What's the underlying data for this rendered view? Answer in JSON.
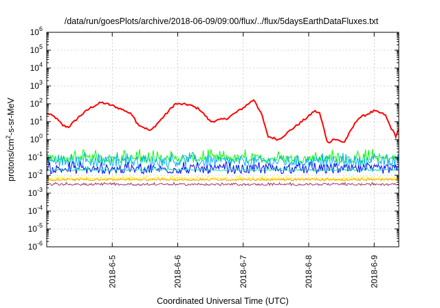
{
  "chart_data": {
    "type": "line",
    "title": "/data/run/goesPlots/archive/2018-06-09/09:00/flux/../flux/5daysEarthDataFluxes.txt",
    "xlabel": "Coordinated Universal Time (UTC)",
    "ylabel": "protons/cm2-s-sr-MeV",
    "ylabel_parts": {
      "base": "protons/cm",
      "sup": "2",
      "rest": "-s-sr-MeV"
    },
    "y_scale": "log",
    "ylim": [
      "1e-6",
      "1e6"
    ],
    "y_ticks": [
      {
        "base": "10",
        "exp": "-6"
      },
      {
        "base": "10",
        "exp": "-5"
      },
      {
        "base": "10",
        "exp": "-4"
      },
      {
        "base": "10",
        "exp": "-3"
      },
      {
        "base": "10",
        "exp": "-2"
      },
      {
        "base": "10",
        "exp": "-1"
      },
      {
        "base": "10",
        "exp": "0"
      },
      {
        "base": "10",
        "exp": "1"
      },
      {
        "base": "10",
        "exp": "2"
      },
      {
        "base": "10",
        "exp": "3"
      },
      {
        "base": "10",
        "exp": "4"
      },
      {
        "base": "10",
        "exp": "5"
      },
      {
        "base": "10",
        "exp": "6"
      }
    ],
    "xlim": [
      "2018-06-04 00:00",
      "2018-06-09 09:00"
    ],
    "x_ticks": [
      "2018-6-5",
      "2018-6-6",
      "2018-6-7",
      "2018-6-8",
      "2018-6-9"
    ],
    "grid": true,
    "series": [
      {
        "color": "#ff0000",
        "style": "smooth",
        "x": [
          "2018-06-04 00:00",
          "2018-06-04 03:00",
          "2018-06-04 06:00",
          "2018-06-04 08:00",
          "2018-06-04 12:00",
          "2018-06-04 16:00",
          "2018-06-04 20:00",
          "2018-06-05 00:00",
          "2018-06-05 05:00",
          "2018-06-05 08:00",
          "2018-06-05 09:00",
          "2018-06-05 14:00",
          "2018-06-05 20:00",
          "2018-06-05 23:00",
          "2018-06-06 04:00",
          "2018-06-06 08:00",
          "2018-06-06 12:00",
          "2018-06-06 18:00",
          "2018-06-07 00:00",
          "2018-06-07 04:00",
          "2018-06-07 07:00",
          "2018-06-07 09:00",
          "2018-06-07 13:00",
          "2018-06-07 18:00",
          "2018-06-08 00:00",
          "2018-06-08 02:00",
          "2018-06-08 04:00",
          "2018-06-08 07:00",
          "2018-06-08 09:00",
          "2018-06-08 13:00",
          "2018-06-08 18:00",
          "2018-06-09 00:00",
          "2018-06-09 04:00",
          "2018-06-09 06:00",
          "2018-06-09 08:00",
          "2018-06-09 09:00"
        ],
        "y": [
          30,
          18,
          6,
          5,
          20,
          60,
          120,
          80,
          40,
          20,
          8,
          3,
          30,
          100,
          90,
          50,
          10,
          15,
          60,
          180,
          20,
          1.5,
          1,
          4,
          20,
          40,
          30,
          0.6,
          1.1,
          0.7,
          15,
          40,
          25,
          5,
          1.5,
          4
        ]
      },
      {
        "color": "#00ff00",
        "style": "noisy",
        "band": [
          "0.05",
          "0.15"
        ],
        "spike_max": "0.3"
      },
      {
        "color": "#00aaff",
        "style": "noisy",
        "band": [
          "0.03",
          "0.12"
        ],
        "spike_max": "0.2"
      },
      {
        "color": "#0000ff",
        "style": "noisy",
        "band": [
          "0.012",
          "0.04"
        ],
        "spike_max": "0.06"
      },
      {
        "color": "#00ddaa",
        "style": "noisy",
        "band": [
          "0.018",
          "0.022"
        ],
        "spike_max": "0.03"
      },
      {
        "color": "#ffff00",
        "style": "noisy",
        "band": [
          "0.005",
          "0.008"
        ],
        "spike_max": "0.009"
      },
      {
        "color": "#ff9900",
        "style": "noisy",
        "band": [
          "0.005",
          "0.0065"
        ],
        "spike_max": "0.007"
      },
      {
        "color": "#993366",
        "style": "noisy",
        "band": [
          "0.0027",
          "0.0035"
        ],
        "spike_max": "0.004"
      }
    ]
  }
}
